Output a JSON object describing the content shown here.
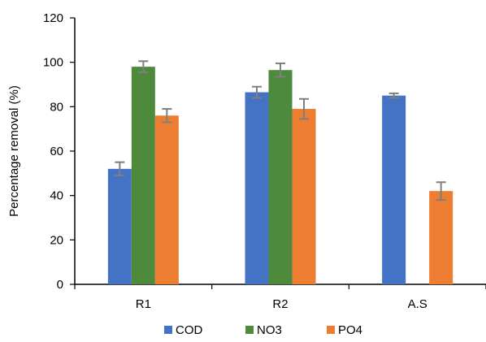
{
  "chart_data": {
    "type": "bar",
    "title": "",
    "xlabel": "",
    "ylabel": "Percentage removal (%)",
    "ylim": [
      0,
      120
    ],
    "yticks": [
      0,
      20,
      40,
      60,
      80,
      100,
      120
    ],
    "grid": false,
    "legend_position": "bottom",
    "categories": [
      "R1",
      "R2",
      "A.S"
    ],
    "series": [
      {
        "name": "COD",
        "color": "#4472c4",
        "values": [
          52,
          86.5,
          85
        ],
        "errors": [
          3,
          2.5,
          1
        ]
      },
      {
        "name": "NO3",
        "color": "#4e8a3c",
        "values": [
          98,
          96.5,
          null
        ],
        "errors": [
          2.5,
          3,
          null
        ]
      },
      {
        "name": "PO4",
        "color": "#ed7d31",
        "values": [
          76,
          79,
          42
        ],
        "errors": [
          3,
          4.5,
          4
        ]
      }
    ]
  }
}
